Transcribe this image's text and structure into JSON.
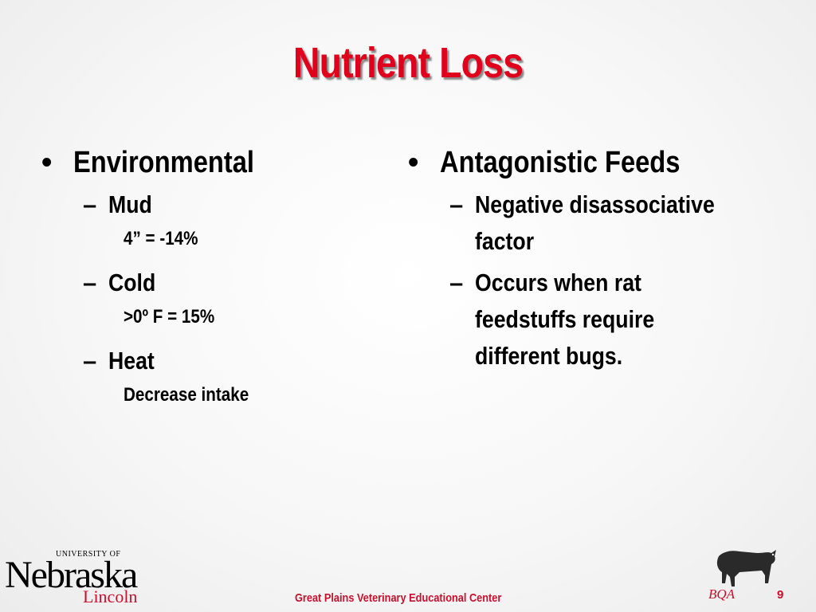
{
  "slide": {
    "title": "Nutrient Loss",
    "left": {
      "heading": "Environmental",
      "items": [
        {
          "label": "Mud",
          "detail": "4” = -14%"
        },
        {
          "label": "Cold",
          "detail": ">0º F = 15%"
        },
        {
          "label": "Heat",
          "detail": "Decrease intake"
        }
      ]
    },
    "right": {
      "heading": "Antagonistic Feeds",
      "items": [
        {
          "label": "Negative disassociative factor"
        },
        {
          "label": "Occurs when rat feedstuffs require different bugs."
        }
      ]
    }
  },
  "bullet_symbol": "•",
  "dash_symbol": "–",
  "footer": {
    "center_text": "Great Plains Veterinary Educational Center",
    "page_number": "9",
    "logo_top": "UNIVERSITY OF",
    "logo_main": "Nebraska",
    "logo_sub": "Lincoln",
    "badge": "BQA"
  },
  "colors": {
    "title": "#e0001b",
    "footer_text": "#c8102e",
    "body_text": "#000000"
  }
}
